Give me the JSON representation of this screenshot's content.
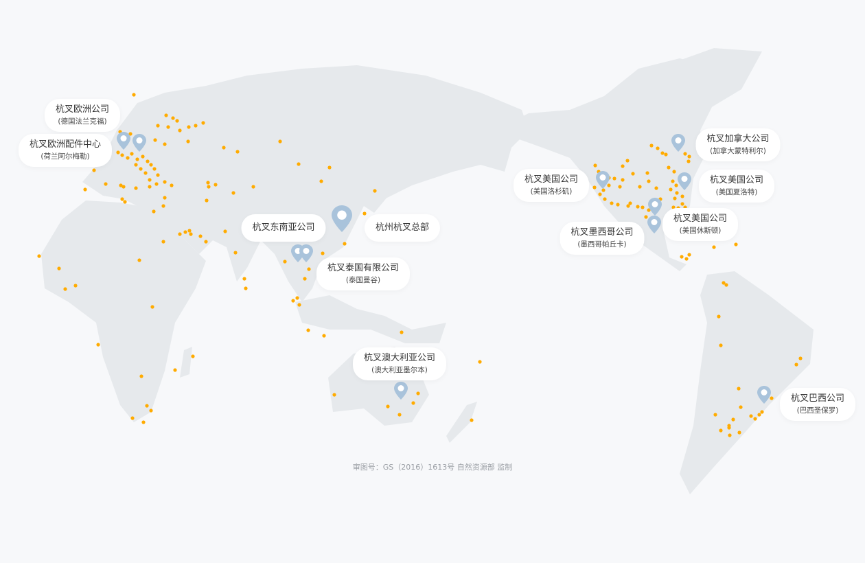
{
  "colors": {
    "background": "#f7f8fa",
    "land": "#e6e9ec",
    "dot": "#ffab00",
    "pin": "#a9c3db",
    "label_bg": "#ffffff"
  },
  "offices": [
    {
      "title": "杭叉欧洲公司",
      "subtitle": "(德国法兰克福)",
      "icon": "map-pin-icon"
    },
    {
      "title": "杭叉欧洲配件中心",
      "subtitle": "(荷兰阿尔梅勒)",
      "icon": "map-pin-icon"
    },
    {
      "title": "杭叉东南亚公司",
      "subtitle": "",
      "icon": "map-pin-icon"
    },
    {
      "title": "杭州杭叉总部",
      "subtitle": "",
      "icon": "map-pin-icon"
    },
    {
      "title": "杭叉泰国有限公司",
      "subtitle": "(泰国曼谷)",
      "icon": "map-pin-icon"
    },
    {
      "title": "杭叉澳大利亚公司",
      "subtitle": "(澳大利亚墨尔本)",
      "icon": "map-pin-icon"
    },
    {
      "title": "杭叉美国公司",
      "subtitle": "(美国洛杉矶)",
      "icon": "map-pin-icon"
    },
    {
      "title": "杭叉加拿大公司",
      "subtitle": "(加拿大蒙特利尔)",
      "icon": "map-pin-icon"
    },
    {
      "title": "杭叉美国公司",
      "subtitle": "(美国夏洛特)",
      "icon": "map-pin-icon"
    },
    {
      "title": "杭叉美国公司",
      "subtitle": "(美国休斯顿)",
      "icon": "map-pin-icon"
    },
    {
      "title": "杭叉墨西哥公司",
      "subtitle": "(墨西哥帕丘卡)",
      "icon": "map-pin-icon"
    },
    {
      "title": "杭叉巴西公司",
      "subtitle": "(巴西圣保罗)",
      "icon": "map-pin-icon"
    }
  ],
  "footer": "审图号：GS（2016）1613号 自然资源部 监制"
}
